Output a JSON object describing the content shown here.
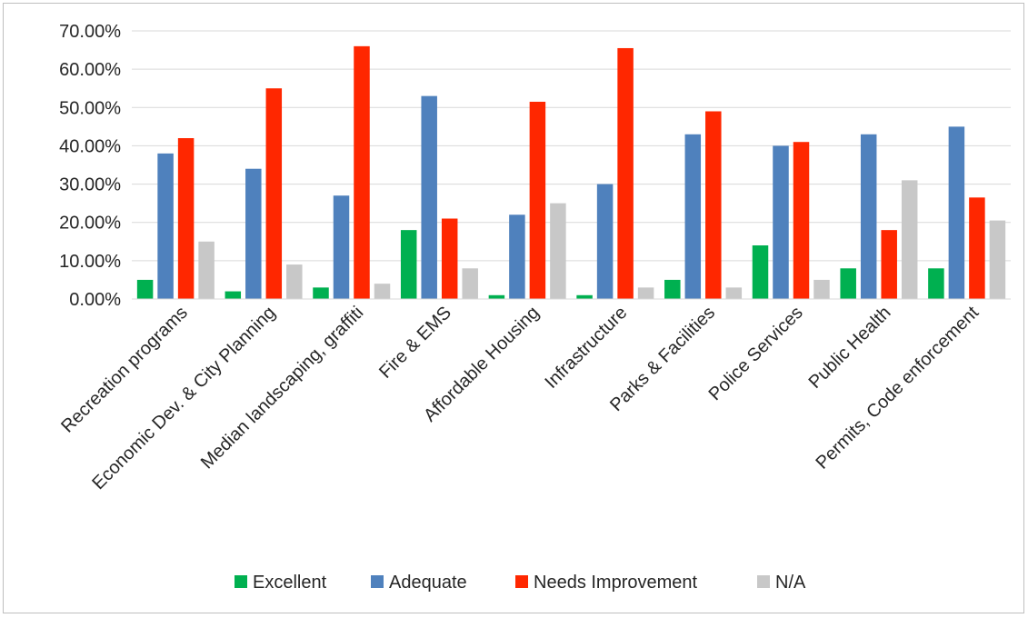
{
  "chart_data": {
    "type": "bar",
    "title": "",
    "xlabel": "",
    "ylabel": "",
    "ylim": [
      0,
      0.7
    ],
    "y_tick_format": "percent-2dp",
    "y_ticks": [
      0,
      0.1,
      0.2,
      0.3,
      0.4,
      0.5,
      0.6,
      0.7
    ],
    "y_tick_labels": [
      "0.00%",
      "10.00%",
      "20.00%",
      "30.00%",
      "40.00%",
      "50.00%",
      "60.00%",
      "70.00%"
    ],
    "grid": true,
    "legend_position": "bottom",
    "categories": [
      "Recreation programs",
      "Economic Dev. & City Planning",
      "Median landscaping, graffiti",
      "Fire & EMS",
      "Affordable Housing",
      "Infrastructure",
      "Parks & Facilities",
      "Police Services",
      "Public Health",
      "Permits, Code enforcement"
    ],
    "series": [
      {
        "name": "Excellent",
        "color": "#00b050",
        "values": [
          0.05,
          0.02,
          0.03,
          0.18,
          0.01,
          0.01,
          0.05,
          0.14,
          0.08,
          0.08
        ]
      },
      {
        "name": "Adequate",
        "color": "#4f81bd",
        "values": [
          0.38,
          0.34,
          0.27,
          0.53,
          0.22,
          0.3,
          0.43,
          0.4,
          0.43,
          0.45
        ]
      },
      {
        "name": "Needs Improvement",
        "color": "#ff2700",
        "values": [
          0.42,
          0.55,
          0.66,
          0.21,
          0.515,
          0.655,
          0.49,
          0.41,
          0.18,
          0.265
        ]
      },
      {
        "name": "N/A",
        "color": "#c8c8c8",
        "values": [
          0.15,
          0.09,
          0.04,
          0.08,
          0.25,
          0.03,
          0.03,
          0.05,
          0.31,
          0.205
        ]
      }
    ]
  }
}
